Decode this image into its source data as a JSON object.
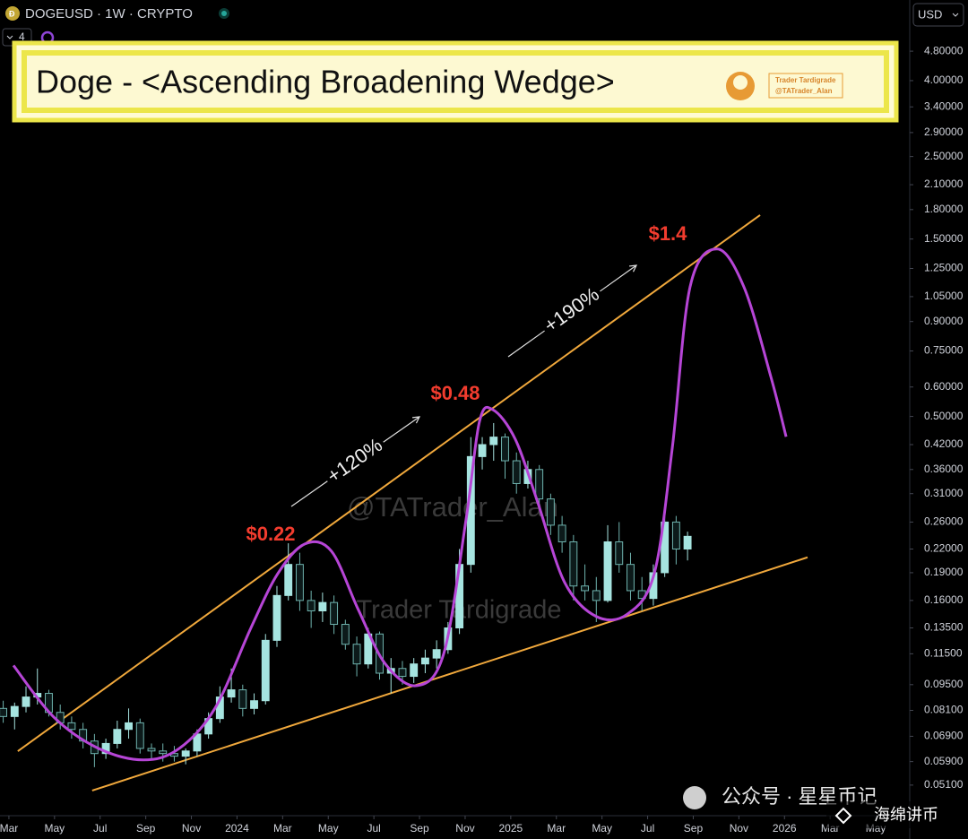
{
  "chart_data": {
    "type": "candlestick",
    "symbol": "DOGEUSD · 1W · CRYPTO",
    "currency": "USD",
    "indicator_count": "4",
    "title": "Doge - <Ascending Broadening Wedge>",
    "logo_name": "Trader Tardigrade",
    "logo_handle": "@TATrader_Alan",
    "watermarks": [
      "@TATrader_Alan",
      "Trader Tardigrade"
    ],
    "corner_watermark": [
      "公众号 · 星星币记",
      "海绵讲币"
    ],
    "log_scale": true,
    "grid": false,
    "up_color": "#a6e4e0",
    "down_color": "#6fb3ae",
    "xlim": [
      1.61,
      41.49
    ],
    "ylim": [
      0.0422,
      6.59
    ],
    "xticks": [
      {
        "value": 2,
        "label": "Mar"
      },
      {
        "value": 4,
        "label": "May"
      },
      {
        "value": 6,
        "label": "Jul"
      },
      {
        "value": 8,
        "label": "Sep"
      },
      {
        "value": 10,
        "label": "Nov"
      },
      {
        "value": 12,
        "label": "2024"
      },
      {
        "value": 14,
        "label": "Mar"
      },
      {
        "value": 16,
        "label": "May"
      },
      {
        "value": 18,
        "label": "Jul"
      },
      {
        "value": 20,
        "label": "Sep"
      },
      {
        "value": 22,
        "label": "Nov"
      },
      {
        "value": 24,
        "label": "2025"
      },
      {
        "value": 26,
        "label": "Mar"
      },
      {
        "value": 28,
        "label": "May"
      },
      {
        "value": 30,
        "label": "Jul"
      },
      {
        "value": 32,
        "label": "Sep"
      },
      {
        "value": 34,
        "label": "Nov"
      },
      {
        "value": 36,
        "label": "2026"
      },
      {
        "value": 38,
        "label": "Mar"
      },
      {
        "value": 40,
        "label": "May"
      }
    ],
    "yticks": [
      {
        "value": 4.8,
        "label": "4.80000"
      },
      {
        "value": 4.0,
        "label": "4.00000"
      },
      {
        "value": 3.4,
        "label": "3.40000"
      },
      {
        "value": 2.9,
        "label": "2.90000"
      },
      {
        "value": 2.5,
        "label": "2.50000"
      },
      {
        "value": 2.1,
        "label": "2.10000"
      },
      {
        "value": 1.8,
        "label": "1.80000"
      },
      {
        "value": 1.5,
        "label": "1.50000"
      },
      {
        "value": 1.25,
        "label": "1.25000"
      },
      {
        "value": 1.05,
        "label": "1.05000"
      },
      {
        "value": 0.9,
        "label": "0.90000"
      },
      {
        "value": 0.75,
        "label": "0.75000"
      },
      {
        "value": 0.6,
        "label": "0.60000"
      },
      {
        "value": 0.5,
        "label": "0.50000"
      },
      {
        "value": 0.42,
        "label": "0.42000"
      },
      {
        "value": 0.36,
        "label": "0.36000"
      },
      {
        "value": 0.31,
        "label": "0.31000"
      },
      {
        "value": 0.26,
        "label": "0.26000"
      },
      {
        "value": 0.22,
        "label": "0.22000"
      },
      {
        "value": 0.19,
        "label": "0.19000"
      },
      {
        "value": 0.16,
        "label": "0.16000"
      },
      {
        "value": 0.135,
        "label": "0.13500"
      },
      {
        "value": 0.115,
        "label": "0.11500"
      },
      {
        "value": 0.095,
        "label": "0.09500"
      },
      {
        "value": 0.081,
        "label": "0.08100"
      },
      {
        "value": 0.069,
        "label": "0.06900"
      },
      {
        "value": 0.059,
        "label": "0.05900"
      },
      {
        "value": 0.051,
        "label": "0.05100"
      }
    ],
    "candles": {
      "x": [
        1.75,
        2.25,
        2.75,
        3.25,
        3.75,
        4.25,
        4.75,
        5.25,
        5.75,
        6.25,
        6.75,
        7.25,
        7.75,
        8.25,
        8.75,
        9.25,
        9.75,
        10.25,
        10.75,
        11.25,
        11.75,
        12.25,
        12.75,
        13.25,
        13.75,
        14.25,
        14.75,
        15.25,
        15.75,
        16.25,
        16.75,
        17.25,
        17.75,
        18.25,
        18.75,
        19.25,
        19.75,
        20.25,
        20.75,
        21.25,
        21.75,
        22.25,
        22.75,
        23.25,
        23.75,
        24.25,
        24.75,
        25.25,
        25.75,
        26.25,
        26.75,
        27.25,
        27.75,
        28.25,
        28.75,
        29.25,
        29.75,
        30.25,
        30.75,
        31.25,
        31.75
      ],
      "open": [
        0.082,
        0.078,
        0.083,
        0.088,
        0.09,
        0.08,
        0.075,
        0.072,
        0.067,
        0.062,
        0.066,
        0.072,
        0.075,
        0.064,
        0.063,
        0.062,
        0.061,
        0.063,
        0.07,
        0.077,
        0.088,
        0.092,
        0.082,
        0.086,
        0.125,
        0.165,
        0.2,
        0.16,
        0.15,
        0.158,
        0.138,
        0.122,
        0.108,
        0.13,
        0.102,
        0.105,
        0.1,
        0.108,
        0.112,
        0.118,
        0.135,
        0.2,
        0.39,
        0.42,
        0.44,
        0.38,
        0.33,
        0.36,
        0.3,
        0.255,
        0.23,
        0.175,
        0.17,
        0.16,
        0.23,
        0.2,
        0.17,
        0.162,
        0.19,
        0.26,
        0.22
      ],
      "high": [
        0.086,
        0.085,
        0.094,
        0.105,
        0.092,
        0.084,
        0.078,
        0.075,
        0.07,
        0.068,
        0.076,
        0.082,
        0.077,
        0.066,
        0.066,
        0.065,
        0.064,
        0.072,
        0.08,
        0.094,
        0.105,
        0.095,
        0.09,
        0.13,
        0.175,
        0.228,
        0.215,
        0.17,
        0.168,
        0.165,
        0.142,
        0.128,
        0.135,
        0.132,
        0.112,
        0.11,
        0.112,
        0.118,
        0.125,
        0.14,
        0.22,
        0.44,
        0.44,
        0.48,
        0.45,
        0.4,
        0.38,
        0.37,
        0.31,
        0.27,
        0.24,
        0.2,
        0.185,
        0.255,
        0.26,
        0.215,
        0.185,
        0.2,
        0.29,
        0.27,
        0.245
      ],
      "low": [
        0.075,
        0.072,
        0.08,
        0.084,
        0.078,
        0.072,
        0.068,
        0.064,
        0.057,
        0.06,
        0.064,
        0.068,
        0.062,
        0.06,
        0.059,
        0.059,
        0.058,
        0.061,
        0.068,
        0.075,
        0.085,
        0.078,
        0.079,
        0.084,
        0.12,
        0.16,
        0.15,
        0.135,
        0.14,
        0.13,
        0.118,
        0.1,
        0.105,
        0.098,
        0.09,
        0.095,
        0.096,
        0.102,
        0.105,
        0.115,
        0.13,
        0.19,
        0.36,
        0.38,
        0.34,
        0.31,
        0.32,
        0.28,
        0.24,
        0.215,
        0.16,
        0.16,
        0.14,
        0.158,
        0.19,
        0.16,
        0.15,
        0.155,
        0.185,
        0.2,
        0.205
      ],
      "close": [
        0.078,
        0.083,
        0.088,
        0.09,
        0.08,
        0.075,
        0.072,
        0.067,
        0.062,
        0.066,
        0.072,
        0.075,
        0.064,
        0.063,
        0.062,
        0.061,
        0.063,
        0.07,
        0.077,
        0.088,
        0.092,
        0.082,
        0.086,
        0.125,
        0.165,
        0.2,
        0.16,
        0.15,
        0.158,
        0.138,
        0.122,
        0.108,
        0.13,
        0.102,
        0.105,
        0.1,
        0.108,
        0.112,
        0.118,
        0.135,
        0.2,
        0.39,
        0.42,
        0.44,
        0.38,
        0.33,
        0.36,
        0.3,
        0.255,
        0.23,
        0.175,
        0.17,
        0.16,
        0.23,
        0.2,
        0.17,
        0.162,
        0.19,
        0.26,
        0.22,
        0.238
      ]
    },
    "trendlines": [
      {
        "color": "#f0a83c",
        "x": [
          2.39,
          34.93
        ],
        "y": [
          0.0629,
          1.74
        ]
      },
      {
        "color": "#f0a83c",
        "x": [
          5.65,
          37.01
        ],
        "y": [
          0.0493,
          0.209
        ]
      }
    ],
    "projection": {
      "color": "#b645d6",
      "x": [
        2.2,
        3.96,
        5.93,
        7.89,
        9.47,
        11.04,
        12.61,
        13.79,
        14.97,
        16.14,
        17.32,
        18.5,
        19.88,
        21.06,
        22.04,
        22.63,
        23.22,
        24.2,
        25.18,
        26.36,
        27.74,
        29.11,
        30.29,
        31.08,
        31.86,
        33.04,
        34.22,
        35.4,
        36.07
      ],
      "y": [
        0.107,
        0.0778,
        0.064,
        0.0596,
        0.064,
        0.0822,
        0.135,
        0.189,
        0.227,
        0.217,
        0.151,
        0.108,
        0.0944,
        0.115,
        0.264,
        0.485,
        0.521,
        0.434,
        0.294,
        0.179,
        0.145,
        0.147,
        0.189,
        0.411,
        1.115,
        1.41,
        1.115,
        0.64,
        0.441
      ]
    },
    "price_labels": [
      "$0.22",
      "$0.48",
      "$1.4"
    ],
    "moves": [
      "+120%",
      "+190%"
    ]
  }
}
